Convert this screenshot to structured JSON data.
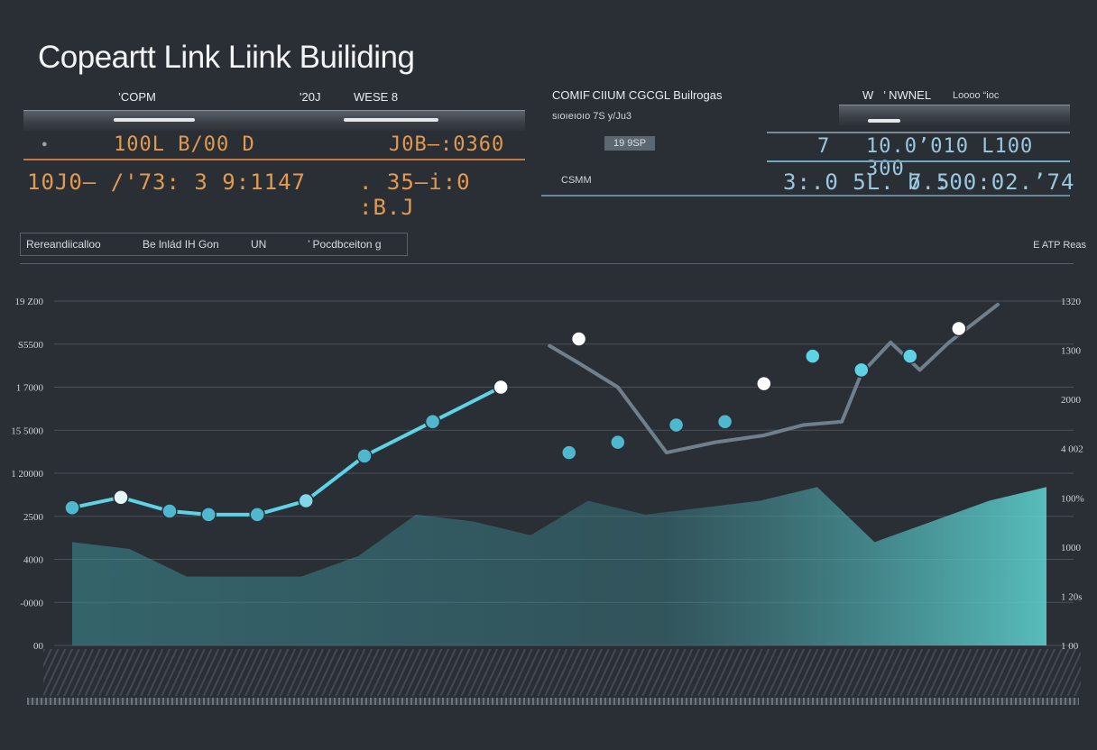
{
  "title": "Copeartt Link Liink Builiding",
  "left_panel": {
    "header_a": "’COPM",
    "header_b": "'20J",
    "header_c": "WESE 8",
    "bullet": "●",
    "row1_a": "100L  B/00 D",
    "row1_b": "J0B—:0360",
    "row2_a": "10J0— /'73: 3 9:1147",
    "row2_b": ". 35—i:0 :B.J"
  },
  "right_panel": {
    "header_a": "COMIF CIIUM CGCGL Builrogas",
    "header_b": "W   ’ NWNEL",
    "header_c": "Loooo “ioc",
    "sub_a": "sıoıeıoıo 7S y/Ju3",
    "chip": "19 9SP",
    "label": "CSMM",
    "row1_a": "7",
    "row1_b": "10.0’010 L100 300",
    "row2_a": "3:.0 5L. 7 5",
    "row2_b": "b.:00:02.’74"
  },
  "toolbar": {
    "item1": "Rereandiicalloo",
    "item2": "Be lnlád IH Gon",
    "item3": "UN",
    "item4": "’ Pocdbceiton g",
    "right_label": "E ATP Reas"
  },
  "chart_data": {
    "type": "line",
    "y_ticks_left": [
      "19 Z00",
      "S5500",
      "1 7000",
      "15 5000",
      "1 20000",
      "2500",
      "4000",
      "‑0000",
      "00"
    ],
    "y_ticks_right": [
      "1320",
      "1300",
      "2000",
      "4 002",
      "100%",
      "1000",
      "1 20s",
      "1 00"
    ],
    "ylim": [
      0,
      100
    ],
    "series": [
      {
        "color": "#5fd3e6",
        "values_x": [
          0,
          5,
          10,
          14,
          19,
          24,
          30,
          37,
          44
        ],
        "values_y": [
          40,
          43,
          39,
          38,
          38,
          42,
          55,
          65,
          75
        ]
      },
      {
        "color": "#6f7f8c",
        "values_x": [
          49,
          52,
          56,
          61,
          66,
          71,
          75,
          79,
          81,
          84,
          87,
          90,
          95
        ],
        "values_y": [
          87,
          82,
          75,
          56,
          59,
          61,
          64,
          65,
          79,
          88,
          80,
          88,
          99
        ]
      }
    ],
    "markers": [
      {
        "x": 0,
        "y": 40,
        "c": "#4fb8cf"
      },
      {
        "x": 5,
        "y": 43,
        "c": "#e8f6fa"
      },
      {
        "x": 10,
        "y": 39,
        "c": "#4fb8cf"
      },
      {
        "x": 14,
        "y": 38,
        "c": "#4fb8cf"
      },
      {
        "x": 19,
        "y": 38,
        "c": "#4fb8cf"
      },
      {
        "x": 24,
        "y": 42,
        "c": "#7fd8e8"
      },
      {
        "x": 30,
        "y": 55,
        "c": "#4fb8cf"
      },
      {
        "x": 37,
        "y": 65,
        "c": "#4fb8cf"
      },
      {
        "x": 44,
        "y": 75,
        "c": "#ffffff"
      },
      {
        "x": 52,
        "y": 89,
        "c": "#ffffff"
      },
      {
        "x": 51,
        "y": 56,
        "c": "#4fb8cf"
      },
      {
        "x": 56,
        "y": 59,
        "c": "#4fb8cf"
      },
      {
        "x": 62,
        "y": 64,
        "c": "#4fb8cf"
      },
      {
        "x": 67,
        "y": 65,
        "c": "#4fb8cf"
      },
      {
        "x": 71,
        "y": 76,
        "c": "#ffffff"
      },
      {
        "x": 76,
        "y": 84,
        "c": "#5fd3e6"
      },
      {
        "x": 81,
        "y": 80,
        "c": "#5fd3e6"
      },
      {
        "x": 86,
        "y": 84,
        "c": "#5fd3e6"
      },
      {
        "x": 91,
        "y": 92,
        "c": "#ffffff"
      }
    ],
    "area_values": [
      30,
      28,
      20,
      20,
      20,
      26,
      38,
      36,
      32,
      42,
      38,
      40,
      42,
      46,
      30,
      36,
      42,
      46
    ]
  }
}
